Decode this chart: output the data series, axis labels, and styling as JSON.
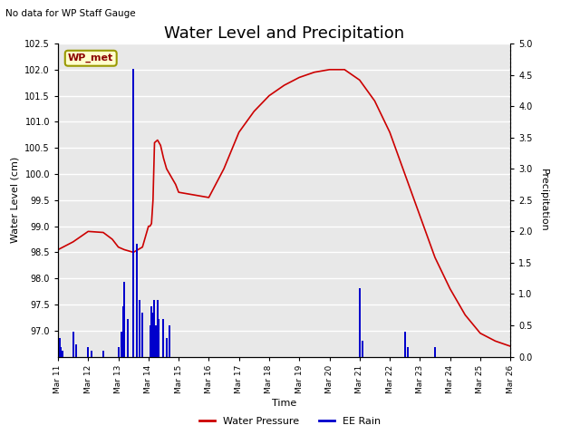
{
  "title": "Water Level and Precipitation",
  "top_left_text": "No data for WP Staff Gauge",
  "annotation_text": "WP_met",
  "xlabel": "Time",
  "ylabel_left": "Water Level (cm)",
  "ylabel_right": "Precipitation",
  "ylim_left": [
    96.5,
    102.5
  ],
  "ylim_right": [
    0.0,
    5.0
  ],
  "yticks_left": [
    97.0,
    97.5,
    98.0,
    98.5,
    99.0,
    99.5,
    100.0,
    100.5,
    101.0,
    101.5,
    102.0,
    102.5
  ],
  "yticks_right": [
    0.0,
    0.5,
    1.0,
    1.5,
    2.0,
    2.5,
    3.0,
    3.5,
    4.0,
    4.5,
    5.0
  ],
  "xtick_labels": [
    "Mar 11",
    "Mar 12",
    "Mar 13",
    "Mar 14",
    "Mar 15",
    "Mar 16",
    "Mar 17",
    "Mar 18",
    "Mar 19",
    "Mar 20",
    "Mar 21",
    "Mar 22",
    "Mar 23",
    "Mar 24",
    "Mar 25",
    "Mar 26"
  ],
  "water_pressure_color": "#cc0000",
  "ee_rain_color": "#0000cc",
  "legend_wp_label": "Water Pressure",
  "legend_rain_label": "EE Rain",
  "fig_facecolor": "#ffffff",
  "plot_bg_color": "#e8e8e8",
  "grid_color": "white",
  "title_fontsize": 13,
  "annotation_facecolor": "#ffffcc",
  "annotation_edgecolor": "#999900",
  "water_pressure_x": [
    0,
    0.5,
    1.0,
    1.5,
    1.8,
    2.0,
    2.2,
    2.5,
    2.8,
    3.0,
    3.05,
    3.1,
    3.15,
    3.2,
    3.3,
    3.4,
    3.5,
    3.6,
    3.7,
    3.8,
    3.9,
    4.0,
    4.5,
    5.0,
    5.5,
    6.0,
    6.5,
    7.0,
    7.5,
    8.0,
    8.5,
    9.0,
    9.5,
    10.0,
    10.5,
    11.0,
    11.5,
    12.0,
    12.5,
    13.0,
    13.5,
    14.0,
    14.5,
    15.0
  ],
  "water_pressure_y": [
    98.55,
    98.7,
    98.9,
    98.88,
    98.75,
    98.6,
    98.55,
    98.5,
    98.6,
    99.0,
    99.0,
    99.05,
    99.5,
    100.6,
    100.65,
    100.55,
    100.3,
    100.1,
    100.0,
    99.9,
    99.8,
    99.65,
    99.6,
    99.55,
    100.1,
    100.8,
    101.2,
    101.5,
    101.7,
    101.85,
    101.95,
    102.0,
    102.0,
    101.8,
    101.4,
    100.8,
    100.0,
    99.2,
    98.4,
    97.8,
    97.3,
    96.95,
    96.8,
    96.7
  ],
  "rain_x": [
    0.05,
    0.1,
    0.15,
    0.5,
    0.6,
    1.0,
    1.1,
    1.5,
    2.0,
    2.1,
    2.15,
    2.2,
    2.3,
    2.5,
    2.6,
    2.7,
    2.8,
    3.05,
    3.1,
    3.15,
    3.2,
    3.25,
    3.3,
    3.35,
    3.5,
    3.6,
    3.7,
    10.0,
    10.1,
    11.5,
    11.6,
    12.5
  ],
  "rain_y": [
    0.3,
    0.15,
    0.1,
    0.4,
    0.2,
    0.15,
    0.1,
    0.1,
    0.15,
    0.4,
    0.8,
    1.2,
    0.6,
    4.6,
    1.8,
    0.9,
    0.7,
    0.5,
    0.8,
    0.7,
    0.9,
    0.5,
    0.9,
    0.6,
    0.6,
    0.3,
    0.5,
    1.1,
    0.25,
    0.4,
    0.15,
    0.15
  ]
}
